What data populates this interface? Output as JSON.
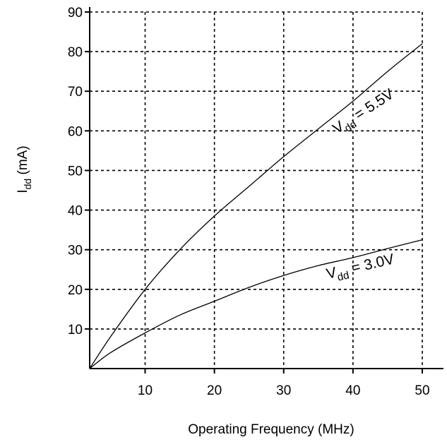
{
  "chart_data": {
    "type": "line",
    "xlabel": "Operating Frequency (MHz)",
    "ylabel": {
      "main": "I",
      "sub": "dd",
      "unit": " (mA)"
    },
    "xlim": [
      2,
      50
    ],
    "ylim": [
      0,
      90
    ],
    "x_ticks": [
      10,
      20,
      30,
      40,
      50
    ],
    "y_ticks": [
      10,
      20,
      30,
      40,
      50,
      60,
      70,
      80,
      90
    ],
    "grid": true,
    "series": [
      {
        "label": {
          "main": "V",
          "sub": "dd",
          "rest": " = 5.5V"
        },
        "x": [
          2,
          5,
          10,
          15,
          20,
          25,
          30,
          35,
          40,
          45,
          50
        ],
        "y": [
          0,
          8,
          20,
          30,
          38.5,
          46,
          53.5,
          60.5,
          67.5,
          75,
          82
        ]
      },
      {
        "label": {
          "main": "V",
          "sub": "dd",
          "rest": " = 3.0V"
        },
        "x": [
          2,
          5,
          10,
          15,
          20,
          25,
          30,
          35,
          40,
          45,
          50
        ],
        "y": [
          0,
          4,
          9,
          13.5,
          17,
          20.5,
          23.5,
          26,
          28,
          30.3,
          32.5
        ]
      }
    ]
  }
}
